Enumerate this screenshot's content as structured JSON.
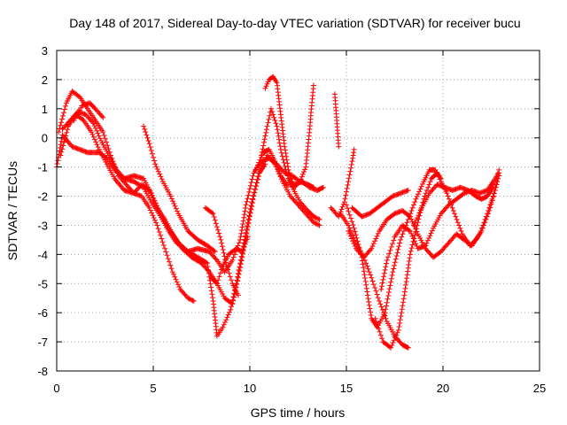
{
  "chart_data": {
    "type": "scatter",
    "title": "Day 148 of 2017, Sidereal Day-to-day VTEC variation (SDTVAR) for receiver bucu",
    "xlabel": "GPS time / hours",
    "ylabel": "SDTVAR / TECUs",
    "xlim": [
      0,
      25
    ],
    "ylim": [
      -8,
      3
    ],
    "xticks": [
      "0",
      "5",
      "10",
      "15",
      "20",
      "25"
    ],
    "yticks": [
      "-8",
      "-7",
      "-6",
      "-5",
      "-4",
      "-3",
      "-2",
      "-1",
      "0",
      "1",
      "2",
      "3"
    ],
    "grid": true,
    "marker": "+",
    "series_color": "#ff0000",
    "series": [
      {
        "values": [
          [
            0,
            -1.0
          ],
          [
            0.3,
            0.1
          ],
          [
            0.8,
            -0.3
          ],
          [
            1.2,
            -0.4
          ],
          [
            1.6,
            -0.5
          ],
          [
            2.2,
            -0.5
          ],
          [
            2.6,
            -0.7
          ],
          [
            3.0,
            -1.1
          ],
          [
            3.5,
            -1.4
          ],
          [
            4.0,
            -1.5
          ],
          [
            4.5,
            -1.7
          ],
          [
            4.9,
            -2.2
          ],
          [
            5.3,
            -2.6
          ],
          [
            5.8,
            -3.2
          ],
          [
            6.2,
            -3.6
          ],
          [
            6.8,
            -3.9
          ],
          [
            7.3,
            -3.8
          ],
          [
            7.9,
            -3.9
          ],
          [
            8.3,
            -4.2
          ],
          [
            8.7,
            -4.6
          ],
          [
            9.1,
            -4.2
          ],
          [
            9.5,
            -3.5
          ],
          [
            9.8,
            -2.3
          ],
          [
            10.2,
            -1.2
          ],
          [
            10.6,
            -0.8
          ],
          [
            11.0,
            -0.7
          ],
          [
            11.4,
            -0.9
          ],
          [
            11.8,
            -1.2
          ],
          [
            12.2,
            -1.3
          ],
          [
            12.6,
            -1.5
          ],
          [
            13.0,
            -1.6
          ],
          [
            13.3,
            -1.7
          ]
        ]
      },
      {
        "values": [
          [
            0.1,
            0.2
          ],
          [
            0.5,
            1.2
          ],
          [
            0.8,
            1.6
          ],
          [
            1.2,
            1.4
          ],
          [
            1.6,
            1.0
          ],
          [
            2.0,
            0.6
          ],
          [
            2.4,
            0.2
          ],
          [
            2.8,
            -0.6
          ],
          [
            3.2,
            -1.3
          ],
          [
            3.6,
            -1.6
          ],
          [
            4.0,
            -1.9
          ],
          [
            4.4,
            -2.0
          ],
          [
            4.8,
            -2.4
          ],
          [
            5.2,
            -3.0
          ],
          [
            5.6,
            -3.8
          ],
          [
            6.0,
            -4.6
          ],
          [
            6.4,
            -5.2
          ],
          [
            6.8,
            -5.5
          ],
          [
            7.1,
            -5.6
          ]
        ]
      },
      {
        "values": [
          [
            0.2,
            -0.6
          ],
          [
            0.6,
            0.4
          ],
          [
            1.0,
            0.8
          ],
          [
            1.4,
            0.6
          ],
          [
            1.8,
            0.2
          ],
          [
            2.2,
            -0.4
          ],
          [
            2.6,
            -0.9
          ],
          [
            3.0,
            -1.4
          ],
          [
            3.5,
            -1.8
          ],
          [
            4.0,
            -1.9
          ],
          [
            4.4,
            -1.6
          ],
          [
            4.8,
            -1.8
          ],
          [
            5.2,
            -2.4
          ],
          [
            5.6,
            -2.8
          ],
          [
            6.0,
            -3.3
          ],
          [
            6.5,
            -3.8
          ],
          [
            7.0,
            -4.1
          ],
          [
            7.5,
            -4.3
          ],
          [
            7.9,
            -4.6
          ],
          [
            8.3,
            -5.0
          ],
          [
            8.7,
            -5.5
          ],
          [
            9.1,
            -5.7
          ],
          [
            9.4,
            -4.8
          ],
          [
            9.8,
            -3.4
          ],
          [
            10.2,
            -2.0
          ],
          [
            10.5,
            -1.2
          ],
          [
            10.8,
            -0.9
          ]
        ]
      },
      {
        "values": [
          [
            0.3,
            0.3
          ],
          [
            0.7,
            0.6
          ],
          [
            1.1,
            0.9
          ],
          [
            1.5,
            0.8
          ],
          [
            1.9,
            0.5
          ],
          [
            2.3,
            -0.1
          ],
          [
            2.7,
            -0.6
          ],
          [
            3.1,
            -1.1
          ],
          [
            3.5,
            -1.4
          ],
          [
            4.0,
            -1.3
          ],
          [
            4.5,
            -1.4
          ],
          [
            4.9,
            -1.9
          ],
          [
            5.3,
            -2.5
          ],
          [
            5.8,
            -3.1
          ],
          [
            6.3,
            -3.6
          ],
          [
            6.8,
            -3.9
          ],
          [
            7.3,
            -4.1
          ],
          [
            7.8,
            -4.3
          ],
          [
            8.1,
            -5.6
          ],
          [
            8.3,
            -6.8
          ],
          [
            8.6,
            -6.5
          ],
          [
            9.0,
            -5.9
          ],
          [
            9.3,
            -5.0
          ],
          [
            9.7,
            -3.6
          ],
          [
            10.1,
            -2.2
          ],
          [
            10.5,
            -1.1
          ],
          [
            10.9,
            -0.6
          ],
          [
            11.3,
            -0.9
          ],
          [
            11.7,
            -1.5
          ],
          [
            12.1,
            -2.0
          ],
          [
            12.5,
            -2.3
          ],
          [
            12.9,
            -2.6
          ],
          [
            13.3,
            -2.9
          ],
          [
            13.6,
            -3.0
          ]
        ]
      },
      {
        "values": [
          [
            0.9,
            0.6
          ],
          [
            1.3,
            1.1
          ],
          [
            1.7,
            1.2
          ],
          [
            2.0,
            1.0
          ],
          [
            2.4,
            0.7
          ]
        ]
      },
      {
        "values": [
          [
            4.5,
            0.4
          ],
          [
            4.8,
            -0.2
          ],
          [
            5.1,
            -0.9
          ],
          [
            5.5,
            -1.5
          ],
          [
            5.9,
            -2.0
          ],
          [
            6.3,
            -2.6
          ],
          [
            6.8,
            -3.2
          ],
          [
            7.3,
            -3.5
          ],
          [
            7.8,
            -3.7
          ],
          [
            8.2,
            -3.9
          ]
        ]
      },
      {
        "values": [
          [
            7.7,
            -2.4
          ],
          [
            8.1,
            -2.6
          ],
          [
            8.5,
            -3.5
          ],
          [
            8.8,
            -4.4
          ],
          [
            9.1,
            -5.0
          ],
          [
            9.4,
            -5.4
          ]
        ]
      },
      {
        "values": [
          [
            10.6,
            -0.6
          ],
          [
            10.9,
            0.4
          ],
          [
            11.1,
            1.0
          ],
          [
            11.4,
            0.4
          ],
          [
            11.6,
            -0.4
          ],
          [
            11.9,
            -1.2
          ],
          [
            12.2,
            -1.7
          ],
          [
            12.6,
            -2.2
          ],
          [
            13.0,
            -2.5
          ],
          [
            13.3,
            -2.7
          ],
          [
            13.6,
            -2.8
          ]
        ]
      },
      {
        "values": [
          [
            10.3,
            -1.1
          ],
          [
            10.7,
            -0.5
          ],
          [
            11.0,
            -0.4
          ],
          [
            11.3,
            -0.8
          ],
          [
            11.6,
            -1.3
          ],
          [
            11.9,
            -1.6
          ],
          [
            12.3,
            -1.6
          ],
          [
            12.7,
            -1.5
          ],
          [
            13.1,
            -1.7
          ],
          [
            13.5,
            -1.8
          ],
          [
            13.8,
            -1.7
          ]
        ]
      },
      {
        "values": [
          [
            10.8,
            1.7
          ],
          [
            11.0,
            2.0
          ],
          [
            11.2,
            2.1
          ],
          [
            11.4,
            1.9
          ],
          [
            11.6,
            0.8
          ],
          [
            11.8,
            -0.3
          ],
          [
            12.0,
            -1.1
          ],
          [
            12.2,
            -1.5
          ]
        ]
      },
      {
        "values": [
          [
            12.0,
            -1.4
          ],
          [
            12.3,
            -1.7
          ],
          [
            12.6,
            -1.5
          ],
          [
            12.9,
            -1.0
          ],
          [
            13.1,
            0.3
          ],
          [
            13.2,
            1.1
          ],
          [
            13.3,
            1.8
          ]
        ]
      },
      {
        "values": [
          [
            14.2,
            -2.4
          ],
          [
            14.6,
            -2.7
          ],
          [
            14.9,
            -2.2
          ],
          [
            15.1,
            -1.5
          ],
          [
            15.3,
            -0.8
          ],
          [
            15.4,
            -0.4
          ]
        ]
      },
      {
        "values": [
          [
            14.7,
            -2.6
          ],
          [
            15.1,
            -3.0
          ],
          [
            15.5,
            -3.6
          ],
          [
            15.9,
            -4.1
          ],
          [
            16.3,
            -4.8
          ],
          [
            16.7,
            -5.6
          ],
          [
            17.1,
            -6.3
          ],
          [
            17.5,
            -6.8
          ],
          [
            17.9,
            -7.1
          ],
          [
            18.2,
            -7.2
          ]
        ]
      },
      {
        "values": [
          [
            15.0,
            -2.3
          ],
          [
            15.4,
            -3.1
          ],
          [
            15.8,
            -4.1
          ],
          [
            16.1,
            -5.4
          ],
          [
            16.3,
            -6.2
          ],
          [
            16.6,
            -6.5
          ],
          [
            17.0,
            -6.0
          ],
          [
            17.4,
            -4.6
          ],
          [
            17.8,
            -3.5
          ],
          [
            18.2,
            -2.8
          ],
          [
            18.6,
            -2.1
          ],
          [
            19.0,
            -1.5
          ],
          [
            19.3,
            -1.1
          ],
          [
            19.6,
            -1.1
          ],
          [
            19.9,
            -1.5
          ],
          [
            20.2,
            -1.9
          ],
          [
            20.6,
            -2.6
          ],
          [
            21.0,
            -3.3
          ],
          [
            21.4,
            -3.7
          ],
          [
            21.7,
            -3.5
          ],
          [
            22.0,
            -3.2
          ],
          [
            22.4,
            -2.5
          ],
          [
            22.7,
            -1.8
          ],
          [
            22.9,
            -1.3
          ]
        ]
      },
      {
        "values": [
          [
            15.1,
            -3.2
          ],
          [
            15.5,
            -3.8
          ],
          [
            15.9,
            -4.1
          ],
          [
            16.3,
            -3.8
          ],
          [
            16.7,
            -3.2
          ],
          [
            17.1,
            -2.8
          ],
          [
            17.5,
            -2.6
          ],
          [
            17.9,
            -2.5
          ],
          [
            18.3,
            -2.7
          ],
          [
            18.7,
            -3.3
          ],
          [
            19.1,
            -3.8
          ],
          [
            19.5,
            -4.1
          ],
          [
            19.9,
            -3.9
          ],
          [
            20.3,
            -3.6
          ],
          [
            20.7,
            -3.3
          ],
          [
            21.1,
            -3.5
          ],
          [
            21.5,
            -3.7
          ],
          [
            21.9,
            -3.3
          ],
          [
            22.3,
            -2.6
          ],
          [
            22.6,
            -2.0
          ],
          [
            22.8,
            -1.5
          ]
        ]
      },
      {
        "values": [
          [
            15.3,
            -2.4
          ],
          [
            15.8,
            -2.7
          ],
          [
            16.2,
            -2.6
          ],
          [
            16.6,
            -2.4
          ],
          [
            17.0,
            -2.2
          ],
          [
            17.4,
            -2.0
          ],
          [
            17.8,
            -1.9
          ],
          [
            18.2,
            -1.8
          ]
        ]
      },
      {
        "values": [
          [
            16.5,
            -6.2
          ],
          [
            16.9,
            -7.0
          ],
          [
            17.3,
            -7.2
          ],
          [
            17.7,
            -6.6
          ],
          [
            18.0,
            -5.4
          ],
          [
            18.3,
            -4.0
          ],
          [
            18.7,
            -2.9
          ],
          [
            19.0,
            -2.1
          ],
          [
            19.4,
            -1.4
          ],
          [
            19.7,
            -1.2
          ],
          [
            19.9,
            -1.4
          ]
        ]
      },
      {
        "values": [
          [
            16.8,
            -5.2
          ],
          [
            17.1,
            -4.2
          ],
          [
            17.5,
            -3.4
          ],
          [
            17.9,
            -3.0
          ],
          [
            18.3,
            -3.2
          ],
          [
            18.7,
            -3.8
          ],
          [
            19.1,
            -3.7
          ],
          [
            19.5,
            -3.1
          ],
          [
            19.9,
            -2.6
          ],
          [
            20.3,
            -2.3
          ],
          [
            20.7,
            -2.1
          ],
          [
            21.1,
            -1.9
          ],
          [
            21.5,
            -1.8
          ],
          [
            21.9,
            -1.9
          ],
          [
            22.3,
            -1.8
          ],
          [
            22.6,
            -1.5
          ],
          [
            22.9,
            -1.2
          ]
        ]
      },
      {
        "values": [
          [
            18.5,
            -3.0
          ],
          [
            18.9,
            -2.4
          ],
          [
            19.3,
            -1.9
          ],
          [
            19.7,
            -1.6
          ],
          [
            20.1,
            -1.7
          ],
          [
            20.5,
            -1.8
          ],
          [
            20.9,
            -1.7
          ],
          [
            21.3,
            -1.8
          ],
          [
            21.7,
            -2.0
          ],
          [
            22.0,
            -2.1
          ],
          [
            22.3,
            -2.0
          ],
          [
            22.6,
            -1.7
          ],
          [
            22.9,
            -1.1
          ]
        ]
      },
      {
        "values": [
          [
            14.4,
            1.5
          ],
          [
            14.5,
            0.6
          ],
          [
            14.6,
            -0.3
          ]
        ]
      },
      {
        "values": [
          [
            8.0,
            -4.8
          ],
          [
            8.3,
            -5.0
          ],
          [
            8.6,
            -4.4
          ],
          [
            8.9,
            -4.0
          ],
          [
            9.3,
            -3.8
          ],
          [
            9.6,
            -3.9
          ],
          [
            9.9,
            -3.4
          ]
        ]
      }
    ]
  }
}
